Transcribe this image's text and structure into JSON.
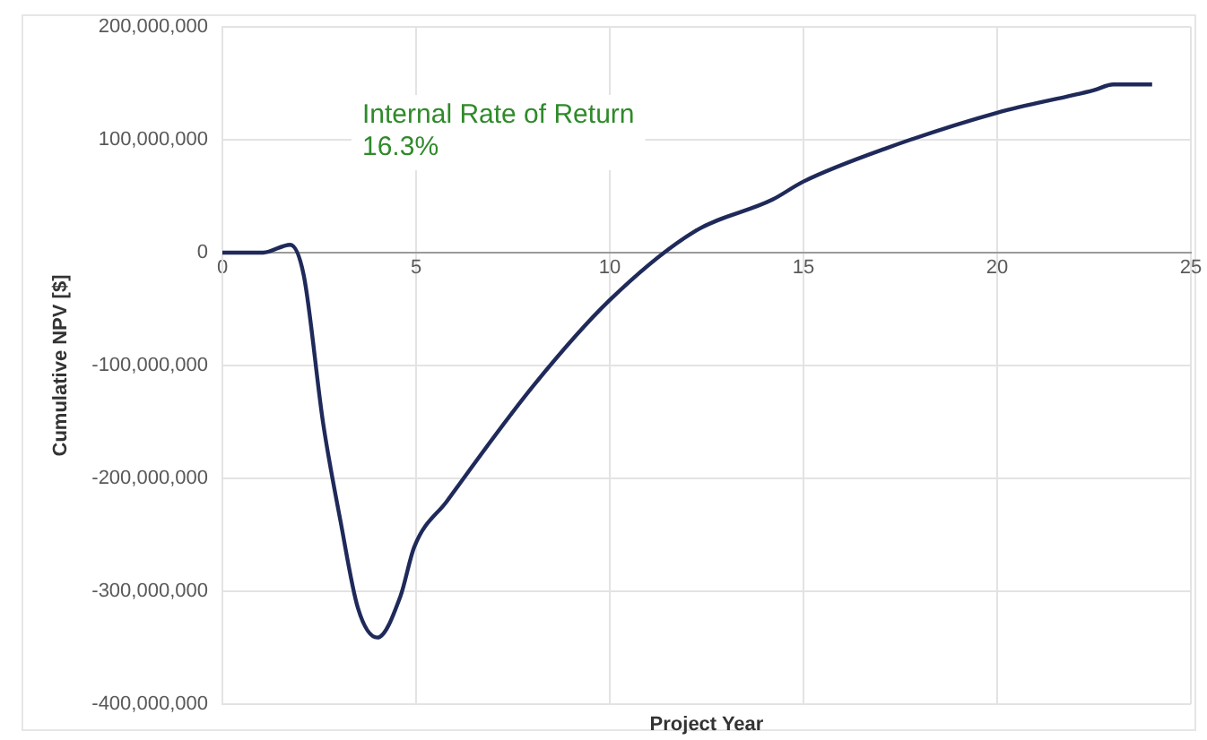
{
  "chart_data": {
    "type": "line",
    "xlabel": "Project Year",
    "ylabel": "Cumulative NPV [$]",
    "annotations": [
      "Internal Rate of Return\n16.3%"
    ],
    "x": [
      0,
      1.05,
      1.75,
      2.1,
      2.6,
      3.05,
      3.5,
      4.0,
      4.6,
      4.95,
      5.8,
      8.05,
      10,
      12.2,
      14.2,
      15,
      17.1,
      20,
      22.5,
      23,
      24
    ],
    "series": [
      {
        "color": "#1f2a5a",
        "values": [
          0,
          0,
          7000000,
          -20000000,
          -151000000,
          -238000000,
          -315000000,
          -341000000,
          -304000000,
          -261000000,
          -220000000,
          -117000000,
          -42000000,
          19000000,
          47000000,
          63000000,
          92000000,
          124000000,
          144000000,
          149000000,
          149000000
        ]
      }
    ],
    "xlim": [
      0,
      25
    ],
    "xticks": [
      0,
      5,
      10,
      15,
      20,
      25
    ],
    "ylim": [
      -400000000,
      200000000
    ],
    "yticks": [
      {
        "value": -400000000,
        "label": "-400,000,000"
      },
      {
        "value": -300000000,
        "label": "-300,000,000"
      },
      {
        "value": -200000000,
        "label": "-200,000,000"
      },
      {
        "value": -100000000,
        "label": "-100,000,000"
      },
      {
        "value": 0,
        "label": "0"
      },
      {
        "value": 100000000,
        "label": "100,000,000"
      },
      {
        "value": 200000000,
        "label": "200,000,000"
      }
    ],
    "grid": true,
    "legend": false,
    "marker": "none",
    "line_style": "solid"
  }
}
